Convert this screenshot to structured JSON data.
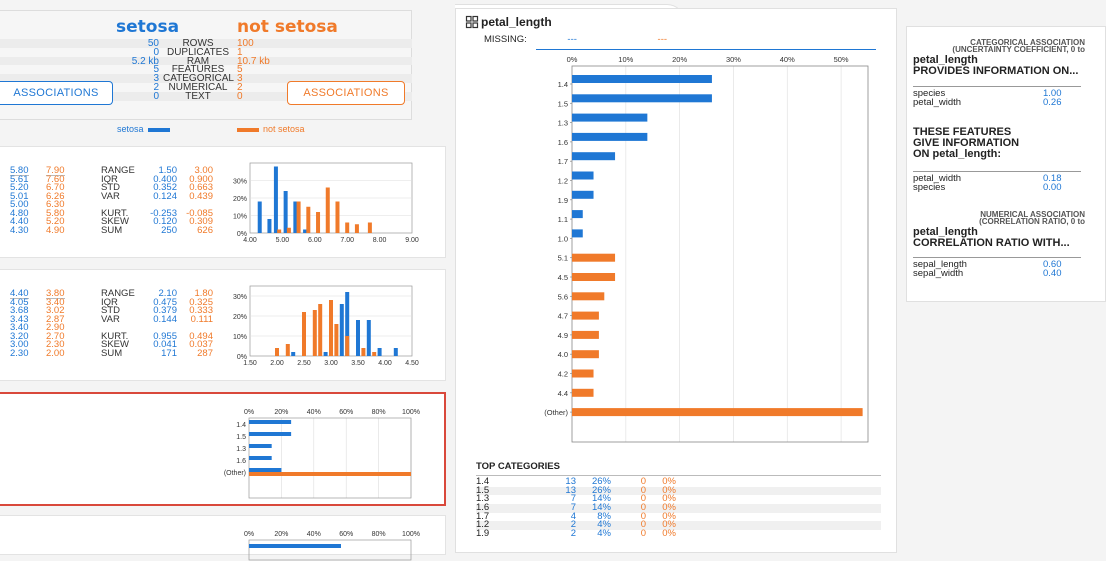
{
  "summary": {
    "groups": [
      "setosa",
      "not setosa"
    ],
    "rows": [
      {
        "label": "ROWS",
        "a": "50",
        "b": "100"
      },
      {
        "label": "DUPLICATES",
        "a": "0",
        "b": "1"
      },
      {
        "label": "RAM",
        "a": "5.2 kb",
        "b": "10.7 kb"
      },
      {
        "label": "FEATURES",
        "a": "5",
        "b": "5"
      },
      {
        "label": "CATEGORICAL",
        "a": "3",
        "b": "3"
      },
      {
        "label": "NUMERICAL",
        "a": "2",
        "b": "2"
      },
      {
        "label": "TEXT",
        "a": "0",
        "b": "0"
      }
    ],
    "assoc_button_label": "ASSOCIATIONS",
    "legend": {
      "a": "setosa",
      "b": "not setosa"
    }
  },
  "colors": {
    "a": "#1f77d4",
    "b": "#f07a2a"
  },
  "card1": {
    "quantiles_a": [
      "5.80",
      "5.61",
      "5.20",
      "5.01",
      "5.00",
      "4.80",
      "4.40",
      "4.30"
    ],
    "quantiles_b": [
      "7.90",
      "7.60",
      "6.70",
      "6.26",
      "6.30",
      "5.80",
      "5.20",
      "4.90"
    ],
    "stats": [
      {
        "k": "RANGE",
        "a": "1.50",
        "b": "3.00"
      },
      {
        "k": "IQR",
        "a": "0.400",
        "b": "0.900"
      },
      {
        "k": "STD",
        "a": "0.352",
        "b": "0.663"
      },
      {
        "k": "VAR",
        "a": "0.124",
        "b": "0.439"
      },
      {
        "k": "",
        "a": "",
        "b": ""
      },
      {
        "k": "KURT.",
        "a": "-0.253",
        "b": "-0.085"
      },
      {
        "k": "SKEW",
        "a": "0.120",
        "b": "0.309"
      },
      {
        "k": "SUM",
        "a": "250",
        "b": "626"
      }
    ],
    "hist": {
      "xticks": [
        "4.00",
        "5.00",
        "6.00",
        "7.00",
        "8.00",
        "9.00"
      ],
      "yticks": [
        "0%",
        "10%",
        "20%",
        "30%"
      ],
      "xmin": 4,
      "xmax": 9,
      "ymax": 40,
      "bars_a": [
        {
          "x": 4.3,
          "v": 18
        },
        {
          "x": 4.6,
          "v": 8
        },
        {
          "x": 4.8,
          "v": 38
        },
        {
          "x": 5.1,
          "v": 24
        },
        {
          "x": 5.4,
          "v": 18
        },
        {
          "x": 5.7,
          "v": 2
        }
      ],
      "bars_b": [
        {
          "x": 4.9,
          "v": 2
        },
        {
          "x": 5.2,
          "v": 3
        },
        {
          "x": 5.5,
          "v": 18
        },
        {
          "x": 5.8,
          "v": 15
        },
        {
          "x": 6.1,
          "v": 12
        },
        {
          "x": 6.4,
          "v": 26
        },
        {
          "x": 6.7,
          "v": 18
        },
        {
          "x": 7.0,
          "v": 6
        },
        {
          "x": 7.3,
          "v": 5
        },
        {
          "x": 7.7,
          "v": 6
        }
      ]
    }
  },
  "card2": {
    "quantiles_a": [
      "4.40",
      "4.05",
      "3.68",
      "3.43",
      "3.40",
      "3.20",
      "3.00",
      "2.30"
    ],
    "quantiles_b": [
      "3.80",
      "3.40",
      "3.02",
      "2.87",
      "2.90",
      "2.70",
      "2.30",
      "2.00"
    ],
    "stats": [
      {
        "k": "RANGE",
        "a": "2.10",
        "b": "1.80"
      },
      {
        "k": "IQR",
        "a": "0.475",
        "b": "0.325"
      },
      {
        "k": "STD",
        "a": "0.379",
        "b": "0.333"
      },
      {
        "k": "VAR",
        "a": "0.144",
        "b": "0.111"
      },
      {
        "k": "",
        "a": "",
        "b": ""
      },
      {
        "k": "KURT.",
        "a": "0.955",
        "b": "0.494"
      },
      {
        "k": "SKEW",
        "a": "0.041",
        "b": "0.037"
      },
      {
        "k": "SUM",
        "a": "171",
        "b": "287"
      }
    ],
    "hist": {
      "xticks": [
        "1.50",
        "2.00",
        "2.50",
        "3.00",
        "3.50",
        "4.00",
        "4.50"
      ],
      "yticks": [
        "0%",
        "10%",
        "20%",
        "30%"
      ],
      "xmin": 1.5,
      "xmax": 4.5,
      "ymax": 35,
      "bars_a": [
        {
          "x": 2.3,
          "v": 2
        },
        {
          "x": 2.9,
          "v": 2
        },
        {
          "x": 3.0,
          "v": 14
        },
        {
          "x": 3.2,
          "v": 26
        },
        {
          "x": 3.3,
          "v": 32
        },
        {
          "x": 3.5,
          "v": 18
        },
        {
          "x": 3.7,
          "v": 18
        },
        {
          "x": 3.9,
          "v": 4
        },
        {
          "x": 4.2,
          "v": 4
        }
      ],
      "bars_b": [
        {
          "x": 2.0,
          "v": 4
        },
        {
          "x": 2.2,
          "v": 6
        },
        {
          "x": 2.5,
          "v": 22
        },
        {
          "x": 2.7,
          "v": 23
        },
        {
          "x": 2.8,
          "v": 26
        },
        {
          "x": 3.0,
          "v": 28
        },
        {
          "x": 3.1,
          "v": 16
        },
        {
          "x": 3.3,
          "v": 10
        },
        {
          "x": 3.6,
          "v": 4
        },
        {
          "x": 3.8,
          "v": 2
        }
      ]
    }
  },
  "card3": {
    "xticks": [
      "0%",
      "20%",
      "40%",
      "60%",
      "80%",
      "100%"
    ],
    "categories": [
      "1.4",
      "1.5",
      "1.3",
      "1.6",
      "(Other)"
    ],
    "values_a": [
      26,
      26,
      14,
      14,
      20
    ],
    "values_b": [
      0,
      0,
      0,
      0,
      100
    ]
  },
  "card4": {
    "xticks": [
      "0%",
      "20%",
      "40%",
      "60%",
      "80%",
      "100%"
    ]
  },
  "detail": {
    "title": "petal_length",
    "missing_label": "MISSING:",
    "missing_a": "---",
    "missing_b": "---",
    "chart_data": {
      "type": "bar",
      "orientation": "horizontal",
      "xticks": [
        "0%",
        "10%",
        "20%",
        "30%",
        "40%",
        "50%"
      ],
      "xmax": 55,
      "categories": [
        "1.4",
        "1.5",
        "1.3",
        "1.6",
        "1.7",
        "1.2",
        "1.9",
        "1.1",
        "1.0",
        "5.1",
        "4.5",
        "5.6",
        "4.7",
        "4.9",
        "4.0",
        "4.2",
        "4.4",
        "(Other)"
      ],
      "series": [
        {
          "name": "setosa",
          "values": [
            26,
            26,
            14,
            14,
            8,
            4,
            4,
            2,
            2,
            0,
            0,
            0,
            0,
            0,
            0,
            0,
            0,
            0
          ]
        },
        {
          "name": "not setosa",
          "values": [
            0,
            0,
            0,
            0,
            0,
            0,
            0,
            0,
            0,
            8,
            8,
            6,
            5,
            5,
            5,
            4,
            4,
            54
          ]
        }
      ]
    },
    "top_categories_title": "TOP CATEGORIES",
    "top_categories": [
      {
        "name": "1.4",
        "c1": "13",
        "p1": "26%",
        "c2": "0",
        "p2": "0%"
      },
      {
        "name": "1.5",
        "c1": "13",
        "p1": "26%",
        "c2": "0",
        "p2": "0%"
      },
      {
        "name": "1.3",
        "c1": "7",
        "p1": "14%",
        "c2": "0",
        "p2": "0%"
      },
      {
        "name": "1.6",
        "c1": "7",
        "p1": "14%",
        "c2": "0",
        "p2": "0%"
      },
      {
        "name": "1.7",
        "c1": "4",
        "p1": "8%",
        "c2": "0",
        "p2": "0%"
      },
      {
        "name": "1.2",
        "c1": "2",
        "p1": "4%",
        "c2": "0",
        "p2": "0%"
      },
      {
        "name": "1.9",
        "c1": "2",
        "p1": "4%",
        "c2": "0",
        "p2": "0%"
      }
    ]
  },
  "assoc": {
    "cat_head1": "CATEGORICAL ASSOCIATION",
    "cat_head2": "(UNCERTAINTY COEFFICIENT, 0 to",
    "feature": "petal_length",
    "provides": "PROVIDES INFORMATION ON...",
    "provides_list": [
      {
        "k": "species",
        "v": "1.00"
      },
      {
        "k": "petal_width",
        "v": "0.26"
      }
    ],
    "gives1": "THESE FEATURES",
    "gives2": "GIVE INFORMATION",
    "gives3": "ON petal_length:",
    "gives_list": [
      {
        "k": "petal_width",
        "v": "0.18"
      },
      {
        "k": "species",
        "v": "0.00"
      }
    ],
    "num_head1": "NUMERICAL ASSOCIATION",
    "num_head2": "(CORRELATION RATIO, 0 to",
    "num_feature": "petal_length",
    "corr": "CORRELATION RATIO WITH...",
    "corr_list": [
      {
        "k": "sepal_length",
        "v": "0.60"
      },
      {
        "k": "sepal_width",
        "v": "0.40"
      }
    ]
  }
}
